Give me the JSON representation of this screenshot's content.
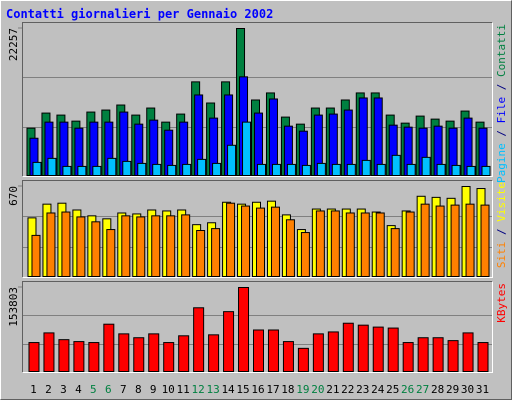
{
  "chart_data": [
    {
      "type": "bar",
      "title": "Contatti giornalieri per Gennaio 2002",
      "legend_separator": " / ",
      "ylim": [
        0,
        22257
      ],
      "yticks": [
        22257
      ],
      "series": [
        {
          "name": "Contatti",
          "color": "#008040",
          "values": [
            7267,
            9538,
            9235,
            8327,
            9690,
            9992,
            10749,
            9235,
            10295,
            8176,
            9387,
            14232,
            11052,
            14232,
            22257,
            11506,
            12566,
            8933,
            7873,
            10295,
            10295,
            11506,
            12566,
            12566,
            9235,
            8024,
            9084,
            8630,
            8327,
            9841,
            8176
          ]
        },
        {
          "name": "File",
          "color": "#0000ff",
          "values": [
            5753,
            8176,
            8176,
            7267,
            8176,
            8176,
            9690,
            7873,
            8478,
            6964,
            8176,
            12263,
            8781,
            12263,
            14989,
            9538,
            11658,
            7570,
            6813,
            9235,
            9387,
            9992,
            11809,
            11809,
            7721,
            7419,
            7267,
            7570,
            7267,
            8781,
            7267
          ]
        },
        {
          "name": "Pagine",
          "color": "#00c0ff",
          "values": [
            2120,
            2725,
            1514,
            1514,
            1514,
            2725,
            2271,
            1968,
            1817,
            1665,
            1817,
            2574,
            1968,
            4693,
            8176,
            1817,
            1817,
            1817,
            1665,
            1968,
            1817,
            1817,
            2422,
            1817,
            3179,
            1817,
            2877,
            1817,
            1665,
            1514,
            1514
          ]
        }
      ]
    },
    {
      "type": "bar",
      "legend_separator": " / ",
      "ylim": [
        0,
        670
      ],
      "yticks": [
        670
      ],
      "series": [
        {
          "name": "Visite",
          "color": "#ffff00",
          "values": [
            439,
            540,
            547,
            497,
            454,
            432,
            475,
            468,
            497,
            490,
            497,
            389,
            403,
            554,
            540,
            554,
            562,
            461,
            353,
            504,
            504,
            504,
            504,
            482,
            382,
            490,
            598,
            590,
            583,
            670,
            655
          ]
        },
        {
          "name": "Siti",
          "color": "#ff8000",
          "values": [
            310,
            475,
            482,
            446,
            410,
            353,
            454,
            446,
            454,
            454,
            461,
            346,
            360,
            547,
            526,
            511,
            518,
            425,
            331,
            490,
            490,
            475,
            475,
            475,
            360,
            482,
            540,
            526,
            533,
            540,
            533
          ]
        }
      ]
    },
    {
      "type": "bar",
      "ylim": [
        0,
        153803
      ],
      "yticks": [
        153803
      ],
      "categories": [
        "1",
        "2",
        "3",
        "4",
        "5",
        "6",
        "7",
        "8",
        "9",
        "10",
        "11",
        "12",
        "13",
        "14",
        "15",
        "16",
        "17",
        "18",
        "19",
        "20",
        "21",
        "22",
        "23",
        "24",
        "25",
        "26",
        "27",
        "28",
        "29",
        "30",
        "31"
      ],
      "category_colors": [
        "#000000",
        "#000000",
        "#000000",
        "#000000",
        "#008040",
        "#008040",
        "#000000",
        "#000000",
        "#000000",
        "#000000",
        "#000000",
        "#008040",
        "#008040",
        "#000000",
        "#000000",
        "#000000",
        "#000000",
        "#000000",
        "#008040",
        "#008040",
        "#000000",
        "#000000",
        "#000000",
        "#000000",
        "#000000",
        "#008040",
        "#008040",
        "#000000",
        "#000000",
        "#000000",
        "#000000"
      ],
      "series": [
        {
          "name": "KBytes",
          "color": "#ff0000",
          "values": [
            54188,
            71668,
            59432,
            55936,
            54188,
            87400,
            69920,
            62928,
            69920,
            54188,
            66424,
            117116,
            68172,
            110124,
            153803,
            76912,
            76912,
            55936,
            43700,
            69920,
            73416,
            89148,
            85652,
            82156,
            80408,
            54188,
            62928,
            62928,
            57684,
            71668,
            54188
          ]
        }
      ]
    }
  ]
}
